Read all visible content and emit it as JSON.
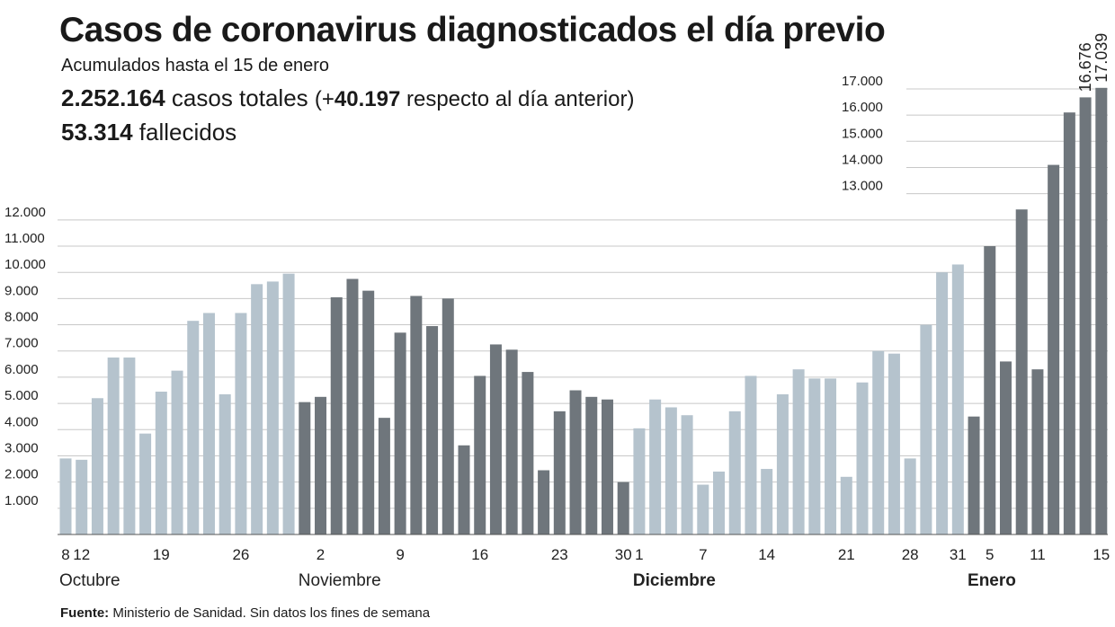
{
  "title": "Casos de coronavirus diagnosticados el día previo",
  "subtitle": "Acumulados hasta el 15 de enero",
  "stats": {
    "total_cases": "2.252.164",
    "total_cases_suffix": "casos totales",
    "delta_open": "(+",
    "delta": "40.197",
    "delta_suffix": "respecto al día anterior)",
    "deaths": "53.314",
    "deaths_suffix": "fallecidos"
  },
  "source": {
    "label": "Fuente:",
    "text": "Ministerio de Sanidad. Sin datos los fines de semana"
  },
  "colors": {
    "light": "#b5c3cd",
    "dark": "#6f767c",
    "grid": "#c8c8c8",
    "axis": "#555555"
  },
  "chart_data": {
    "type": "bar",
    "title": "Casos de coronavirus diagnosticados el día previo",
    "ylim": [
      0,
      17500
    ],
    "yticks_left": [
      "1.000",
      "2.000",
      "3.000",
      "4.000",
      "5.000",
      "6.000",
      "7.000",
      "8.000",
      "9.000",
      "10.000",
      "11.000",
      "12.000"
    ],
    "yticks_right": [
      "13.000",
      "14.000",
      "15.000",
      "16.000",
      "17.000"
    ],
    "values": [
      2900,
      2850,
      5200,
      6750,
      6750,
      3850,
      5450,
      6250,
      8150,
      8450,
      5350,
      8450,
      9550,
      9650,
      9950,
      5050,
      5250,
      9050,
      9750,
      9300,
      4450,
      7700,
      9100,
      7950,
      9000,
      3400,
      6050,
      7250,
      7050,
      6200,
      2450,
      4700,
      5500,
      5250,
      5150,
      2000,
      4050,
      5150,
      4850,
      4550,
      1900,
      2400,
      4700,
      6050,
      2500,
      5350,
      6300,
      5950,
      5950,
      2200,
      5800,
      7000,
      6900,
      2900,
      8000,
      10000,
      10300,
      4500,
      11000,
      6600,
      12400,
      6300,
      14100,
      16100,
      16676,
      17039
    ],
    "shades": [
      "light",
      "light",
      "light",
      "light",
      "light",
      "light",
      "light",
      "light",
      "light",
      "light",
      "light",
      "light",
      "light",
      "light",
      "light",
      "dark",
      "dark",
      "dark",
      "dark",
      "dark",
      "dark",
      "dark",
      "dark",
      "dark",
      "dark",
      "dark",
      "dark",
      "dark",
      "dark",
      "dark",
      "dark",
      "dark",
      "dark",
      "dark",
      "dark",
      "dark",
      "light",
      "light",
      "light",
      "light",
      "light",
      "light",
      "light",
      "light",
      "light",
      "light",
      "light",
      "light",
      "light",
      "light",
      "light",
      "light",
      "light",
      "light",
      "light",
      "light",
      "light",
      "dark",
      "dark",
      "dark",
      "dark",
      "dark",
      "dark",
      "dark",
      "dark",
      "dark"
    ],
    "xticks": [
      {
        "i": 0,
        "label": "8"
      },
      {
        "i": 1,
        "label": "12"
      },
      {
        "i": 6,
        "label": "19"
      },
      {
        "i": 11,
        "label": "26"
      },
      {
        "i": 16,
        "label": "2"
      },
      {
        "i": 21,
        "label": "9"
      },
      {
        "i": 26,
        "label": "16"
      },
      {
        "i": 31,
        "label": "23"
      },
      {
        "i": 35,
        "label": "30"
      },
      {
        "i": 36,
        "label": "1"
      },
      {
        "i": 40,
        "label": "7"
      },
      {
        "i": 44,
        "label": "14"
      },
      {
        "i": 49,
        "label": "21"
      },
      {
        "i": 53,
        "label": "28"
      },
      {
        "i": 56,
        "label": "31"
      },
      {
        "i": 58,
        "label": "5"
      },
      {
        "i": 61,
        "label": "11"
      },
      {
        "i": 65,
        "label": "15"
      }
    ],
    "months": [
      {
        "i": 0,
        "label": "Octubre",
        "bold": false
      },
      {
        "i": 15,
        "label": "Noviembre",
        "bold": false
      },
      {
        "i": 36,
        "label": "Diciembre",
        "bold": true
      },
      {
        "i": 57,
        "label": "Enero",
        "bold": true
      }
    ],
    "value_labels": [
      {
        "i": 64,
        "label": "16.676"
      },
      {
        "i": 65,
        "label": "17.039"
      }
    ]
  }
}
